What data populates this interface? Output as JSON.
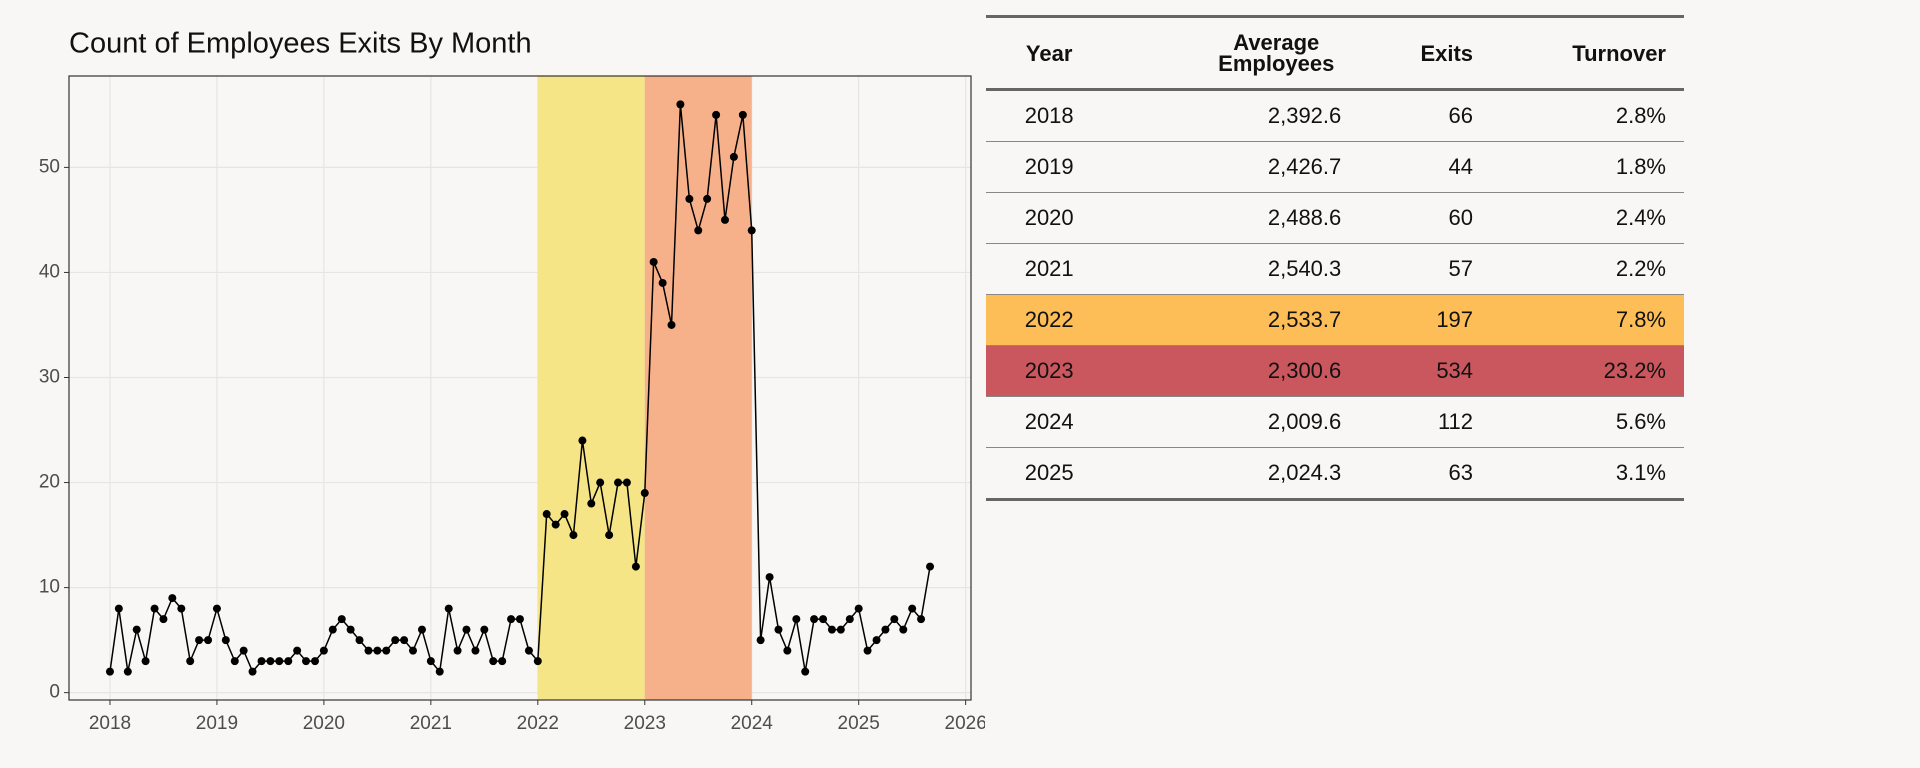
{
  "chart_data": {
    "type": "line",
    "title": "Count of Employees Exits By Month",
    "x": [
      2018,
      2018.083,
      2018.167,
      2018.25,
      2018.333,
      2018.417,
      2018.5,
      2018.583,
      2018.667,
      2018.75,
      2018.833,
      2018.917,
      2019,
      2019.083,
      2019.167,
      2019.25,
      2019.333,
      2019.417,
      2019.5,
      2019.583,
      2019.667,
      2019.75,
      2019.833,
      2019.917,
      2020,
      2020.083,
      2020.167,
      2020.25,
      2020.333,
      2020.417,
      2020.5,
      2020.583,
      2020.667,
      2020.75,
      2020.833,
      2020.917,
      2021,
      2021.083,
      2021.167,
      2021.25,
      2021.333,
      2021.417,
      2021.5,
      2021.583,
      2021.667,
      2021.75,
      2021.833,
      2021.917,
      2022,
      2022.083,
      2022.167,
      2022.25,
      2022.333,
      2022.417,
      2022.5,
      2022.583,
      2022.667,
      2022.75,
      2022.833,
      2022.917,
      2023,
      2023.083,
      2023.167,
      2023.25,
      2023.333,
      2023.417,
      2023.5,
      2023.583,
      2023.667,
      2023.75,
      2023.833,
      2023.917,
      2024,
      2024.083,
      2024.167,
      2024.25,
      2024.333,
      2024.417,
      2024.5,
      2024.583,
      2024.667,
      2024.75,
      2024.833,
      2024.917,
      2025,
      2025.083,
      2025.167,
      2025.25,
      2025.333,
      2025.417,
      2025.5,
      2025.583,
      2025.667
    ],
    "values": [
      2,
      8,
      2,
      6,
      3,
      8,
      7,
      9,
      8,
      3,
      5,
      5,
      8,
      5,
      3,
      4,
      2,
      3,
      3,
      3,
      3,
      4,
      3,
      3,
      4,
      6,
      7,
      6,
      5,
      4,
      4,
      4,
      5,
      5,
      4,
      6,
      3,
      2,
      8,
      4,
      6,
      4,
      6,
      3,
      3,
      7,
      7,
      4,
      3,
      17,
      16,
      17,
      15,
      24,
      18,
      20,
      15,
      20,
      20,
      12,
      19,
      41,
      39,
      35,
      56,
      47,
      44,
      47,
      55,
      45,
      51,
      55,
      44,
      5,
      11,
      6,
      4,
      7,
      2,
      7,
      7,
      6,
      6,
      7,
      8,
      4,
      5,
      6,
      7,
      6,
      8,
      7,
      12
    ],
    "color": "#000000",
    "bands": [
      {
        "from": 2022,
        "to": 2023,
        "color": "#f6e586"
      },
      {
        "from": 2023,
        "to": 2024,
        "color": "#f6b18b"
      }
    ],
    "xlim": [
      2017.617,
      2026.05
    ],
    "xticks": [
      2018,
      2019,
      2020,
      2021,
      2022,
      2023,
      2024,
      2025,
      2026
    ],
    "ylim": [
      -0.7,
      58.7
    ],
    "yticks": [
      0,
      10,
      20,
      30,
      40,
      50
    ],
    "grid": true
  },
  "table": {
    "columns": [
      "Year",
      "Average Employees",
      "Exits",
      "Turnover"
    ],
    "rows": [
      [
        "2018",
        "2,392.6",
        "66",
        "2.8%"
      ],
      [
        "2019",
        "2,426.7",
        "44",
        "1.8%"
      ],
      [
        "2020",
        "2,488.6",
        "60",
        "2.4%"
      ],
      [
        "2021",
        "2,540.3",
        "57",
        "2.2%"
      ],
      [
        "2022",
        "2,533.7",
        "197",
        "7.8%"
      ],
      [
        "2023",
        "2,300.6",
        "534",
        "23.2%"
      ],
      [
        "2024",
        "2,009.6",
        "112",
        "5.6%"
      ],
      [
        "2025",
        "2,024.3",
        "63",
        "3.1%"
      ]
    ],
    "highlights": [
      {
        "row": 4,
        "color": "#fdbd57"
      },
      {
        "row": 5,
        "color": "#cb575e"
      }
    ]
  }
}
